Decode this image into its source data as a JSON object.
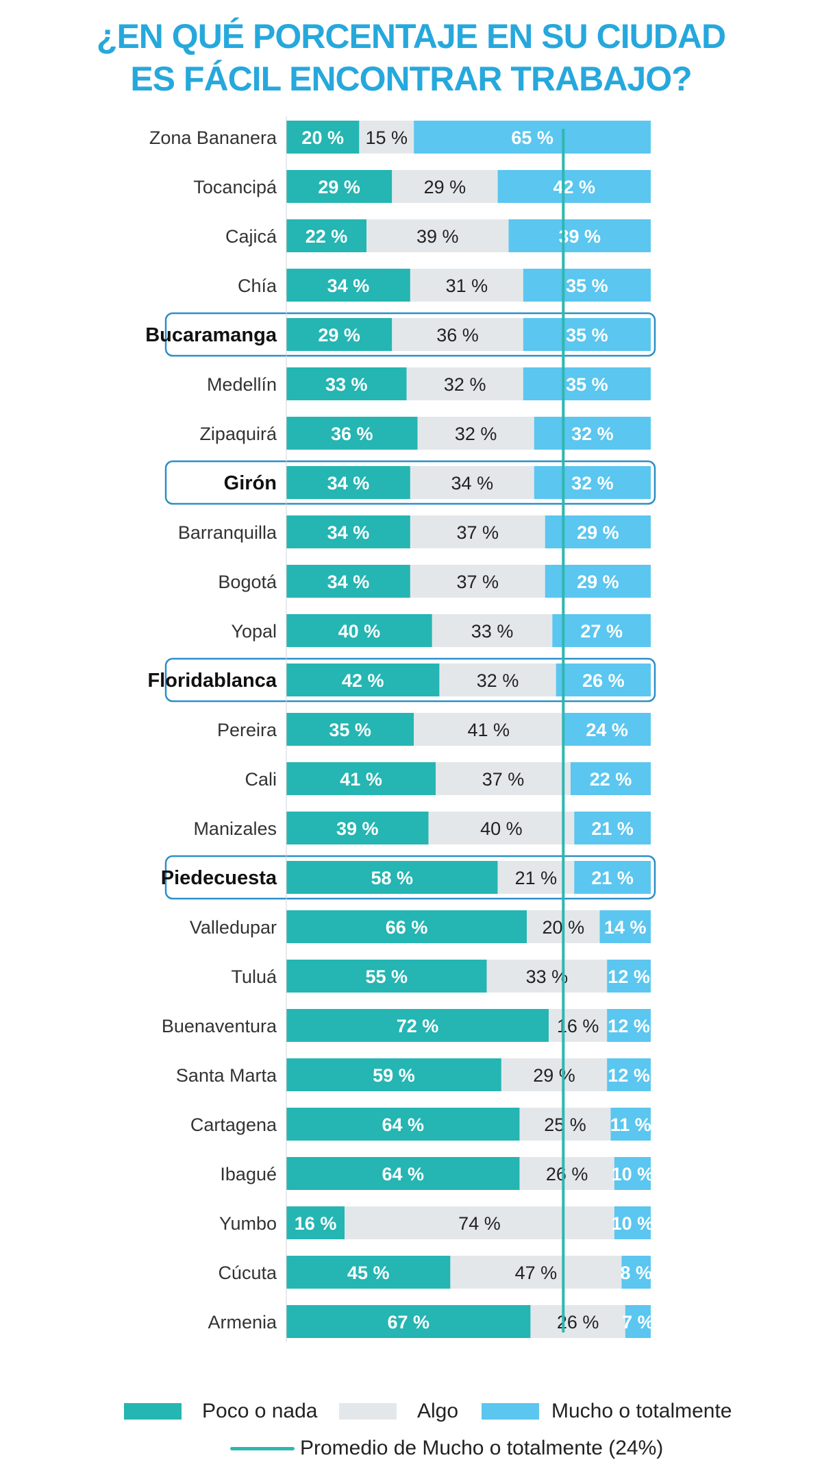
{
  "title_lines": [
    "¿EN QUÉ PORCENTAJE EN SU CIUDAD",
    "ES FÁCIL ENCONTRAR TRABAJO?"
  ],
  "colors": {
    "poco": "#25b5b2",
    "algo": "#e4e7ea",
    "mucho": "#5bc6ef",
    "avg": "#2fb7b1",
    "highlight": "#2b8fc8",
    "title": "#26a8dc"
  },
  "legend": {
    "poco": "Poco o nada",
    "algo": "Algo",
    "mucho": "Mucho o totalmente",
    "avg": "Promedio de Mucho o totalmente (24%)"
  },
  "chart_data": {
    "type": "bar",
    "orientation": "horizontal-stacked-100",
    "categories": [
      "Zona Bananera",
      "Tocancipá",
      "Cajicá",
      "Chía",
      "Bucaramanga",
      "Medellín",
      "Zipaquirá",
      "Girón",
      "Barranquilla",
      "Bogotá",
      "Yopal",
      "Floridablanca",
      "Pereira",
      "Cali",
      "Manizales",
      "Piedecuesta",
      "Valledupar",
      "Tuluá",
      "Buenaventura",
      "Santa Marta",
      "Cartagena",
      "Ibagué",
      "Yumbo",
      "Cúcuta",
      "Armenia"
    ],
    "highlighted": [
      "Bucaramanga",
      "Girón",
      "Floridablanca",
      "Piedecuesta"
    ],
    "series": [
      {
        "name": "Poco o nada",
        "values": [
          20,
          29,
          22,
          34,
          29,
          33,
          36,
          34,
          34,
          34,
          40,
          42,
          35,
          41,
          39,
          58,
          66,
          55,
          72,
          59,
          64,
          64,
          16,
          45,
          67
        ]
      },
      {
        "name": "Algo",
        "values": [
          15,
          29,
          39,
          31,
          36,
          32,
          32,
          34,
          37,
          37,
          33,
          32,
          41,
          37,
          40,
          21,
          20,
          33,
          16,
          29,
          25,
          26,
          74,
          47,
          26
        ]
      },
      {
        "name": "Mucho o totalmente",
        "values": [
          65,
          42,
          39,
          35,
          35,
          35,
          32,
          32,
          29,
          29,
          27,
          26,
          24,
          22,
          21,
          21,
          14,
          12,
          12,
          12,
          11,
          10,
          10,
          8,
          7
        ]
      }
    ],
    "reference_line": {
      "name": "Promedio de Mucho o totalmente",
      "value": 24
    },
    "value_suffix": " %"
  }
}
